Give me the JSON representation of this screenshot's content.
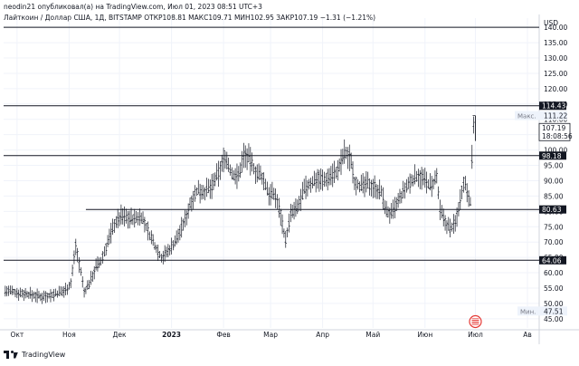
{
  "header": {
    "published_by": "neodin21 опубликовал(а) на TradingView.com, Июл 01, 2023 08:51 UTC+3",
    "legend": "Лайткоин / Доллар США, 1Д, BITSTAMP  ОТКР108.81  МАКС109.71  МИН102.95  ЗАКР107.19  −1.31 (−1.21%)"
  },
  "footer": {
    "brand": "TradingView"
  },
  "colors": {
    "up": "#131722",
    "down": "#131722",
    "line": "#131722",
    "grid": "#f0f3fa",
    "label_bg": "#131722",
    "label_text": "#ffffff",
    "axis_text": "#131722",
    "hint_bg": "#eef3fb",
    "event_icon": "#e53935"
  },
  "icons": {
    "event": "usa-flag-event-icon"
  },
  "chart_data": {
    "type": "candlestick",
    "symbol": "LTCUSD",
    "exchange": "BITSTAMP",
    "interval": "1D",
    "currency": "USD",
    "ylim": [
      42,
      143
    ],
    "y_ticks": [
      45,
      50,
      55,
      60,
      65,
      70,
      75,
      80,
      85,
      90,
      95,
      100,
      105,
      110,
      115,
      120,
      125,
      130,
      135,
      140
    ],
    "y_tick_labels": [
      "45.00",
      "50.00",
      "55.00",
      "60.00",
      "65.00",
      "70.00",
      "75.00",
      "80.00",
      "85.00",
      "90.00",
      "95.00",
      "100.00",
      "105.00",
      "110.00",
      "115.00",
      "120.00",
      "125.00",
      "130.00",
      "135.00",
      "140.00"
    ],
    "x_ticks": [
      {
        "label": "Окт",
        "date": "2022-10-01"
      },
      {
        "label": "Ноя",
        "date": "2022-11-01"
      },
      {
        "label": "Дек",
        "date": "2022-12-01"
      },
      {
        "label": "2023",
        "date": "2023-01-01"
      },
      {
        "label": "Фев",
        "date": "2023-02-01"
      },
      {
        "label": "Мар",
        "date": "2023-03-01"
      },
      {
        "label": "Апр",
        "date": "2023-04-01"
      },
      {
        "label": "Май",
        "date": "2023-05-01"
      },
      {
        "label": "Июн",
        "date": "2023-06-01"
      },
      {
        "label": "Июл",
        "date": "2023-07-01"
      },
      {
        "label": "Ав",
        "date": "2023-08-01"
      }
    ],
    "xlim": [
      "2022-09-23",
      "2023-08-08"
    ],
    "horizontal_levels": [
      {
        "value": 140,
        "label": ""
      },
      {
        "value": 114.43,
        "label": "114.43"
      },
      {
        "value": 98.18,
        "label": "98.18"
      },
      {
        "value": 64.06,
        "label": "64.06"
      }
    ],
    "segment_levels": [
      {
        "value": 80.63,
        "label": "80.63",
        "from": "2022-11-11"
      }
    ],
    "last_price": {
      "value": 107.19,
      "label": "107.19",
      "countdown": "18:08:56"
    },
    "max_marker": {
      "label": "Макс.",
      "value_label": "111.22",
      "value": 111.22
    },
    "min_marker": {
      "label": "Мин.",
      "value_label": "47.51",
      "value": 47.51
    },
    "event_marker": {
      "date": "2023-07-01"
    },
    "series": [
      {
        "date": "2022-09-24",
        "close": 54.1
      },
      {
        "date": "2022-10-01",
        "close": 53.5
      },
      {
        "date": "2022-10-08",
        "close": 53.0
      },
      {
        "date": "2022-10-15",
        "close": 52.2
      },
      {
        "date": "2022-10-22",
        "close": 52.8
      },
      {
        "date": "2022-10-29",
        "close": 54.0
      },
      {
        "date": "2022-11-02",
        "close": 56.5
      },
      {
        "date": "2022-11-05",
        "close": 69.0
      },
      {
        "date": "2022-11-08",
        "close": 60.0
      },
      {
        "date": "2022-11-10",
        "close": 53.5
      },
      {
        "date": "2022-11-13",
        "close": 56.5
      },
      {
        "date": "2022-11-17",
        "close": 62.0
      },
      {
        "date": "2022-11-20",
        "close": 63.5
      },
      {
        "date": "2022-11-24",
        "close": 70.0
      },
      {
        "date": "2022-11-28",
        "close": 76.0
      },
      {
        "date": "2022-12-02",
        "close": 78.5
      },
      {
        "date": "2022-12-06",
        "close": 78.0
      },
      {
        "date": "2022-12-10",
        "close": 77.5
      },
      {
        "date": "2022-12-14",
        "close": 78.5
      },
      {
        "date": "2022-12-18",
        "close": 73.5
      },
      {
        "date": "2022-12-22",
        "close": 69.0
      },
      {
        "date": "2022-12-26",
        "close": 65.0
      },
      {
        "date": "2022-12-30",
        "close": 67.0
      },
      {
        "date": "2023-01-04",
        "close": 71.0
      },
      {
        "date": "2023-01-09",
        "close": 77.0
      },
      {
        "date": "2023-01-13",
        "close": 84.0
      },
      {
        "date": "2023-01-17",
        "close": 87.0
      },
      {
        "date": "2023-01-21",
        "close": 86.5
      },
      {
        "date": "2023-01-25",
        "close": 88.0
      },
      {
        "date": "2023-01-29",
        "close": 92.5
      },
      {
        "date": "2023-02-02",
        "close": 98.0
      },
      {
        "date": "2023-02-06",
        "close": 92.0
      },
      {
        "date": "2023-02-10",
        "close": 91.5
      },
      {
        "date": "2023-02-13",
        "close": 98.5
      },
      {
        "date": "2023-02-16",
        "close": 97.5
      },
      {
        "date": "2023-02-20",
        "close": 93.0
      },
      {
        "date": "2023-02-24",
        "close": 91.0
      },
      {
        "date": "2023-02-28",
        "close": 86.0
      },
      {
        "date": "2023-03-04",
        "close": 85.0
      },
      {
        "date": "2023-03-07",
        "close": 79.0
      },
      {
        "date": "2023-03-10",
        "close": 70.5
      },
      {
        "date": "2023-03-13",
        "close": 79.0
      },
      {
        "date": "2023-03-17",
        "close": 81.0
      },
      {
        "date": "2023-03-21",
        "close": 87.0
      },
      {
        "date": "2023-03-25",
        "close": 89.0
      },
      {
        "date": "2023-03-29",
        "close": 91.0
      },
      {
        "date": "2023-04-02",
        "close": 90.0
      },
      {
        "date": "2023-04-06",
        "close": 92.0
      },
      {
        "date": "2023-04-10",
        "close": 93.0
      },
      {
        "date": "2023-04-14",
        "close": 99.0
      },
      {
        "date": "2023-04-18",
        "close": 97.0
      },
      {
        "date": "2023-04-20",
        "close": 90.0
      },
      {
        "date": "2023-04-24",
        "close": 88.0
      },
      {
        "date": "2023-04-28",
        "close": 89.0
      },
      {
        "date": "2023-05-02",
        "close": 88.0
      },
      {
        "date": "2023-05-06",
        "close": 86.0
      },
      {
        "date": "2023-05-09",
        "close": 80.0
      },
      {
        "date": "2023-05-12",
        "close": 79.0
      },
      {
        "date": "2023-05-16",
        "close": 83.0
      },
      {
        "date": "2023-05-20",
        "close": 87.0
      },
      {
        "date": "2023-05-24",
        "close": 90.0
      },
      {
        "date": "2023-05-28",
        "close": 92.0
      },
      {
        "date": "2023-06-01",
        "close": 90.0
      },
      {
        "date": "2023-06-05",
        "close": 88.0
      },
      {
        "date": "2023-06-08",
        "close": 91.0
      },
      {
        "date": "2023-06-10",
        "close": 80.0
      },
      {
        "date": "2023-06-13",
        "close": 76.5
      },
      {
        "date": "2023-06-16",
        "close": 74.5
      },
      {
        "date": "2023-06-19",
        "close": 76.0
      },
      {
        "date": "2023-06-22",
        "close": 84.0
      },
      {
        "date": "2023-06-24",
        "close": 90.0
      },
      {
        "date": "2023-06-26",
        "close": 87.0
      },
      {
        "date": "2023-06-28",
        "close": 83.5
      },
      {
        "date": "2023-06-29",
        "close": 97.0
      },
      {
        "date": "2023-06-30",
        "close": 108.5
      },
      {
        "date": "2023-07-01",
        "close": 107.19
      }
    ]
  }
}
